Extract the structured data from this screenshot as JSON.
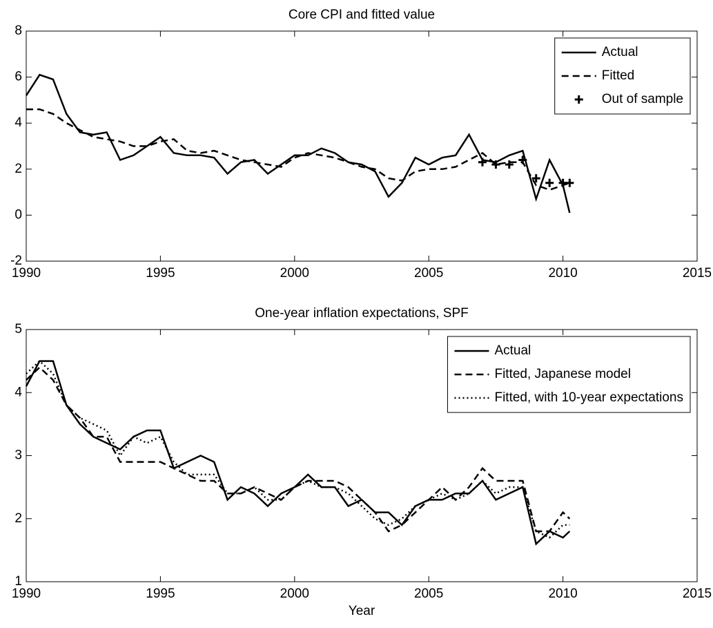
{
  "chart_data": [
    {
      "type": "line",
      "title": "Core CPI and fitted value",
      "x": [
        1990,
        1990.5,
        1991,
        1991.5,
        1992,
        1992.5,
        1993,
        1993.5,
        1994,
        1994.5,
        1995,
        1995.5,
        1996,
        1996.5,
        1997,
        1997.5,
        1998,
        1998.5,
        1999,
        1999.5,
        2000,
        2000.5,
        2001,
        2001.5,
        2002,
        2002.5,
        2003,
        2003.5,
        2004,
        2004.5,
        2005,
        2005.5,
        2006,
        2006.5,
        2007,
        2007.5,
        2008,
        2008.5,
        2009,
        2009.5,
        2010,
        2010.25
      ],
      "series": [
        {
          "name": "Actual",
          "color": "#000000",
          "style": "solid",
          "values": [
            5.2,
            6.1,
            5.9,
            4.4,
            3.6,
            3.5,
            3.6,
            2.4,
            2.6,
            3.0,
            3.4,
            2.7,
            2.6,
            2.6,
            2.5,
            1.8,
            2.3,
            2.4,
            1.8,
            2.2,
            2.6,
            2.6,
            2.9,
            2.7,
            2.3,
            2.2,
            1.9,
            0.8,
            1.4,
            2.5,
            2.2,
            2.5,
            2.6,
            3.5,
            2.4,
            2.3,
            2.6,
            2.8,
            0.7,
            2.4,
            1.3,
            0.1
          ]
        },
        {
          "name": "Fitted",
          "color": "#000000",
          "style": "dashed",
          "values": [
            4.6,
            4.6,
            4.4,
            4.0,
            3.7,
            3.4,
            3.3,
            3.2,
            3.0,
            3.0,
            3.2,
            3.3,
            2.8,
            2.7,
            2.8,
            2.6,
            2.4,
            2.3,
            2.2,
            2.1,
            2.5,
            2.7,
            2.6,
            2.5,
            2.3,
            2.1,
            2.0,
            1.6,
            1.5,
            1.9,
            2.0,
            2.0,
            2.1,
            2.4,
            2.7,
            2.2,
            2.3,
            2.3,
            1.3,
            1.1,
            1.3,
            1.4
          ]
        },
        {
          "name": "Out of sample",
          "color": "#000000",
          "style": "plus",
          "values": [
            null,
            null,
            null,
            null,
            null,
            null,
            null,
            null,
            null,
            null,
            null,
            null,
            null,
            null,
            null,
            null,
            null,
            null,
            null,
            null,
            null,
            null,
            null,
            null,
            null,
            null,
            null,
            null,
            null,
            null,
            null,
            null,
            null,
            null,
            2.3,
            2.2,
            2.2,
            2.4,
            1.6,
            1.4,
            1.4,
            1.4
          ]
        }
      ],
      "xlim": [
        1990,
        2015
      ],
      "xticks": [
        1990,
        1995,
        2000,
        2005,
        2010,
        2015
      ],
      "ylim": [
        -2,
        8
      ],
      "yticks": [
        -2,
        0,
        2,
        4,
        6,
        8
      ],
      "legend": "upper right"
    },
    {
      "type": "line",
      "title": "One-year inflation expectations, SPF",
      "xlabel": "Year",
      "x": [
        1990,
        1990.5,
        1991,
        1991.5,
        1992,
        1992.5,
        1993,
        1993.5,
        1994,
        1994.5,
        1995,
        1995.5,
        1996,
        1996.5,
        1997,
        1997.5,
        1998,
        1998.5,
        1999,
        1999.5,
        2000,
        2000.5,
        2001,
        2001.5,
        2002,
        2002.5,
        2003,
        2003.5,
        2004,
        2004.5,
        2005,
        2005.5,
        2006,
        2006.5,
        2007,
        2007.5,
        2008,
        2008.5,
        2009,
        2009.5,
        2010,
        2010.25
      ],
      "series": [
        {
          "name": "Actual",
          "color": "#000000",
          "style": "solid",
          "values": [
            4.1,
            4.5,
            4.5,
            3.8,
            3.5,
            3.3,
            3.2,
            3.1,
            3.3,
            3.4,
            3.4,
            2.8,
            2.9,
            3.0,
            2.9,
            2.3,
            2.5,
            2.4,
            2.2,
            2.4,
            2.5,
            2.7,
            2.5,
            2.5,
            2.2,
            2.3,
            2.1,
            2.1,
            1.9,
            2.2,
            2.3,
            2.3,
            2.4,
            2.4,
            2.6,
            2.3,
            2.4,
            2.5,
            1.6,
            1.8,
            1.7,
            1.8
          ]
        },
        {
          "name": "Fitted, Japanese model",
          "color": "#000000",
          "style": "dashed",
          "values": [
            4.2,
            4.4,
            4.2,
            3.8,
            3.6,
            3.3,
            3.3,
            2.9,
            2.9,
            2.9,
            2.9,
            2.8,
            2.7,
            2.6,
            2.6,
            2.4,
            2.4,
            2.5,
            2.4,
            2.3,
            2.5,
            2.6,
            2.6,
            2.6,
            2.5,
            2.3,
            2.1,
            1.8,
            1.9,
            2.1,
            2.3,
            2.5,
            2.3,
            2.5,
            2.8,
            2.6,
            2.6,
            2.6,
            1.8,
            1.8,
            2.1,
            2.0
          ]
        },
        {
          "name": "Fitted, with 10-year expectations",
          "color": "#000000",
          "style": "dotted",
          "values": [
            4.3,
            4.5,
            4.3,
            3.8,
            3.6,
            3.5,
            3.4,
            3.0,
            3.3,
            3.2,
            3.3,
            2.9,
            2.7,
            2.7,
            2.7,
            2.4,
            2.4,
            2.5,
            2.3,
            2.3,
            2.5,
            2.6,
            2.5,
            2.5,
            2.4,
            2.2,
            2.0,
            1.9,
            2.0,
            2.2,
            2.3,
            2.4,
            2.3,
            2.4,
            2.6,
            2.4,
            2.5,
            2.5,
            1.8,
            1.7,
            1.9,
            1.9
          ]
        }
      ],
      "xlim": [
        1990,
        2015
      ],
      "xticks": [
        1990,
        1995,
        2000,
        2005,
        2010,
        2015
      ],
      "ylim": [
        1,
        5
      ],
      "yticks": [
        1,
        2,
        3,
        4,
        5
      ],
      "legend": "upper right"
    }
  ]
}
